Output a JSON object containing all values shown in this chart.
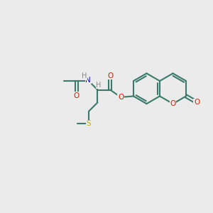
{
  "bg_color": "#ebebeb",
  "bond_color": "#3a7a6a",
  "o_color": "#cc2200",
  "n_color": "#1010cc",
  "s_color": "#ccaa00",
  "h_color": "#888888",
  "lw": 1.5,
  "figsize": [
    3.0,
    3.0
  ],
  "dpi": 100,
  "xlim": [
    0,
    10
  ],
  "ylim": [
    0,
    10
  ]
}
